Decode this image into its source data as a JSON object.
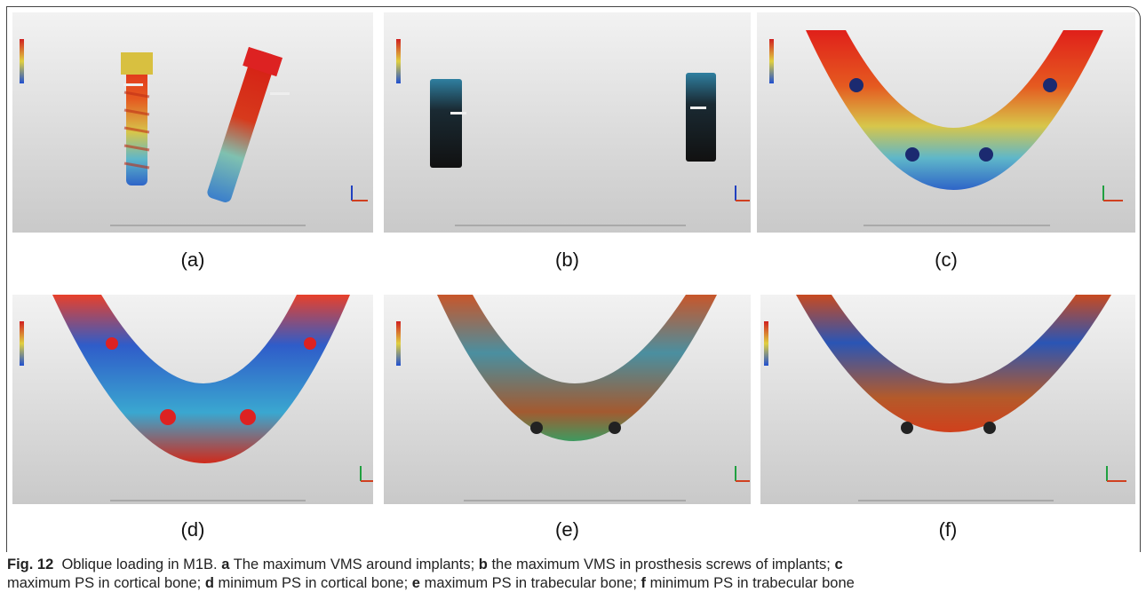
{
  "figure": {
    "label": "Fig. 12",
    "title": "Oblique loading in M1B.",
    "panels": [
      {
        "letter": "a",
        "label": "(a)",
        "description": "The maximum VMS around implants;"
      },
      {
        "letter": "b",
        "label": "(b)",
        "description": "the maximum VMS in prosthesis screws of implants;"
      },
      {
        "letter": "c",
        "label": "(c)",
        "description": "maximum PS in cortical bone;"
      },
      {
        "letter": "d",
        "label": "(d)",
        "description": "minimum PS in cortical bone;"
      },
      {
        "letter": "e",
        "label": "(e)",
        "description": "maximum PS in trabecular bone;"
      },
      {
        "letter": "f",
        "label": "(f)",
        "description": "minimum PS in trabecular bone"
      }
    ]
  }
}
